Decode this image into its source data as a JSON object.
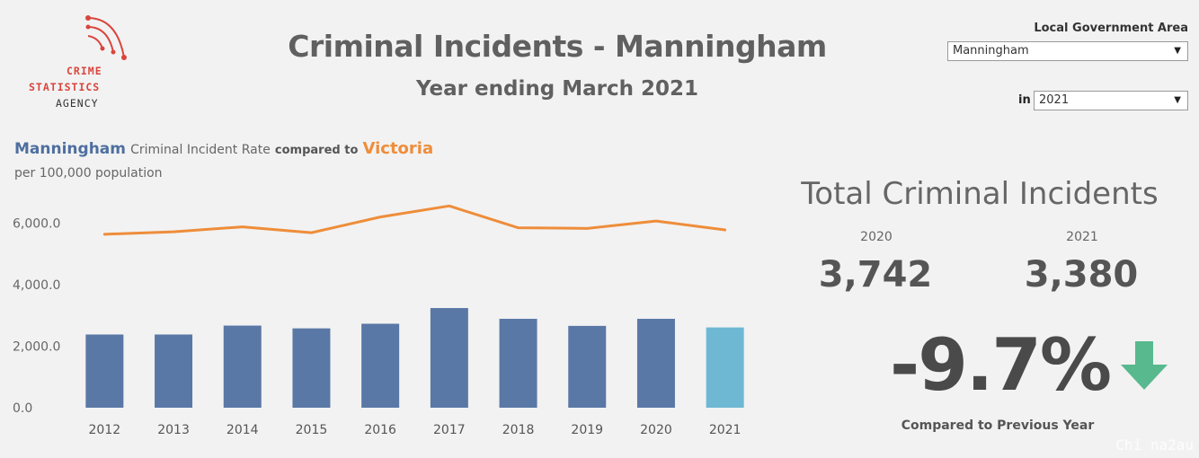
{
  "logo": {
    "line1": "CRIME",
    "line2": "STATISTICS",
    "line3": "AGENCY",
    "color": "#d9453d"
  },
  "header": {
    "title": "Criminal Incidents - Manningham",
    "subtitle": "Year ending March 2021"
  },
  "filters": {
    "lga_label": "Local Government Area",
    "lga_value": "Manningham",
    "year_prefix": "in",
    "year_value": "2021"
  },
  "legend": {
    "series_a": "Manningham",
    "mid_text": "Criminal Incident Rate",
    "compare_text": "compared to",
    "series_b": "Victoria",
    "unit": "per 100,000 population"
  },
  "chart_data": {
    "type": "bar",
    "categories": [
      "2012",
      "2013",
      "2014",
      "2015",
      "2016",
      "2017",
      "2018",
      "2019",
      "2020",
      "2021"
    ],
    "series": [
      {
        "name": "Manningham",
        "type": "bar",
        "values": [
          2380,
          2380,
          2670,
          2580,
          2730,
          3240,
          2890,
          2660,
          2890,
          2610
        ],
        "color": "#5a78a6",
        "highlight_color": "#6fb8d3",
        "highlight_index": 9
      },
      {
        "name": "Victoria",
        "type": "line",
        "values": [
          5640,
          5720,
          5880,
          5690,
          6200,
          6560,
          5850,
          5830,
          6070,
          5780
        ],
        "color": "#ee8d3a"
      }
    ],
    "yticks": [
      0,
      2000,
      4000,
      6000
    ],
    "ytick_labels": [
      "0.0",
      "2,000.0",
      "4,000.0",
      "6,000.0"
    ],
    "ylim": [
      0,
      7000
    ],
    "grid": false
  },
  "kpi": {
    "title": "Total Criminal Incidents",
    "prev_year": "2020",
    "prev_value": "3,742",
    "curr_year": "2021",
    "curr_value": "3,380",
    "change": "-9.7%",
    "change_direction": "down-arrow-icon",
    "arrow_color": "#58b98f",
    "compared_label": "Compared to Previous Year"
  },
  "watermark": "Chi na2au"
}
